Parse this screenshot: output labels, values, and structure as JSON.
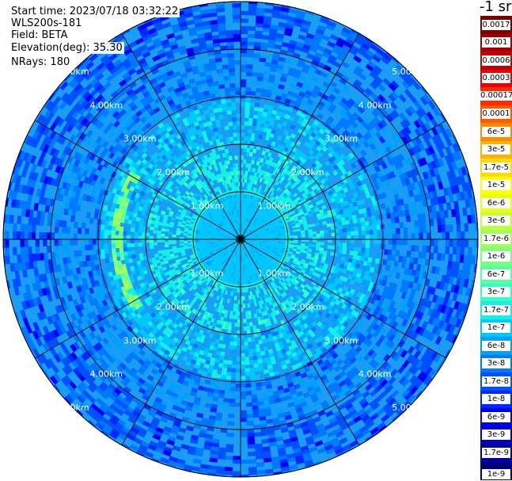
{
  "info": {
    "start_time": "Start time: 2023/07/18 03:32:22",
    "instrument": "WLS200s-181",
    "field": "Field: BETA",
    "elevation": "Elevation(deg): 35.30",
    "nrays": "NRays: 180"
  },
  "colorbar": {
    "unit": "-1 sr",
    "labels": [
      "0.0017",
      "0.001",
      "0.0006",
      "0.0003",
      "0.00017",
      "0.0001",
      "6e-5",
      "3e-5",
      "1.7e-5",
      "1e-5",
      "6e-6",
      "3e-6",
      "1.7e-6",
      "1e-6",
      "6e-7",
      "3e-7",
      "1.7e-7",
      "1e-7",
      "6e-8",
      "3e-8",
      "1.7e-8",
      "1e-8",
      "6e-9",
      "3e-9",
      "1.7e-9",
      "1e-9"
    ],
    "colors": [
      "#7a0000",
      "#a00000",
      "#c40000",
      "#e80000",
      "#ff2a00",
      "#ff5a00",
      "#ff8a00",
      "#ffb300",
      "#ffdc00",
      "#ffff00",
      "#e6ff14",
      "#c3ff38",
      "#a0ff5c",
      "#7dff7f",
      "#5affa3",
      "#36ffc6",
      "#14f0e8",
      "#00c8ff",
      "#00a0ff",
      "#0078ff",
      "#0050ff",
      "#0028ff",
      "#0000f0",
      "#0000c8",
      "#0000a0",
      "#000078"
    ]
  },
  "chart_data": {
    "type": "heatmap",
    "projection": "PPI polar",
    "ring_labels": [
      "1.00km",
      "2.00km",
      "3.00km",
      "4.00km",
      "5.00km"
    ],
    "ring_ranges_km": [
      1,
      2,
      3,
      4,
      5
    ],
    "max_range_km": 5.3,
    "spoke_step_deg": 30,
    "n_rays": 180,
    "value_unit": "m^-1 sr^-1",
    "dominant_value_by_range": [
      {
        "range_km": [
          0,
          1
        ],
        "value": "1e-7"
      },
      {
        "range_km": [
          1,
          2
        ],
        "value": "1.7e-7"
      },
      {
        "range_km": [
          2,
          3
        ],
        "value": "1e-7"
      },
      {
        "range_km": [
          3,
          4
        ],
        "value": "3e-8"
      },
      {
        "range_km": [
          4,
          5.3
        ],
        "value": "1.7e-8"
      }
    ],
    "feature": {
      "description": "enhanced arc",
      "azimuth_deg": [
        235,
        300
      ],
      "range_km": 2.6,
      "value": "1e-6"
    }
  }
}
